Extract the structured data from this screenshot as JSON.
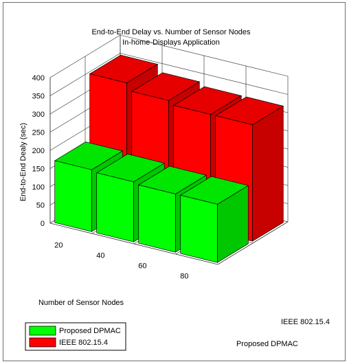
{
  "chart_data": {
    "type": "bar",
    "title": "End-to-End Delay  vs. Number of Sensor Nodes",
    "subtitle": "In-home-Displays Application",
    "xlabel": "Number of Sensor Nodes",
    "ylabel": "End-to-End Dealy (sec)",
    "categories": [
      "20",
      "40",
      "60",
      "80"
    ],
    "yticks": [
      "0",
      "50",
      "100",
      "150",
      "200",
      "250",
      "300",
      "350",
      "400"
    ],
    "ylim": [
      0,
      400
    ],
    "grid": true,
    "legend_position": "bottom-left",
    "series": [
      {
        "name": "Proposed DPMAC",
        "color": "#00ff00",
        "values": [
          170,
          165,
          160,
          160
        ]
      },
      {
        "name": "IEEE 802.15.4",
        "color": "#ff0000",
        "values": [
          350,
          330,
          320,
          320
        ]
      }
    ],
    "depth_labels": [
      "Proposed DPMAC",
      "IEEE 802.15.4"
    ]
  }
}
